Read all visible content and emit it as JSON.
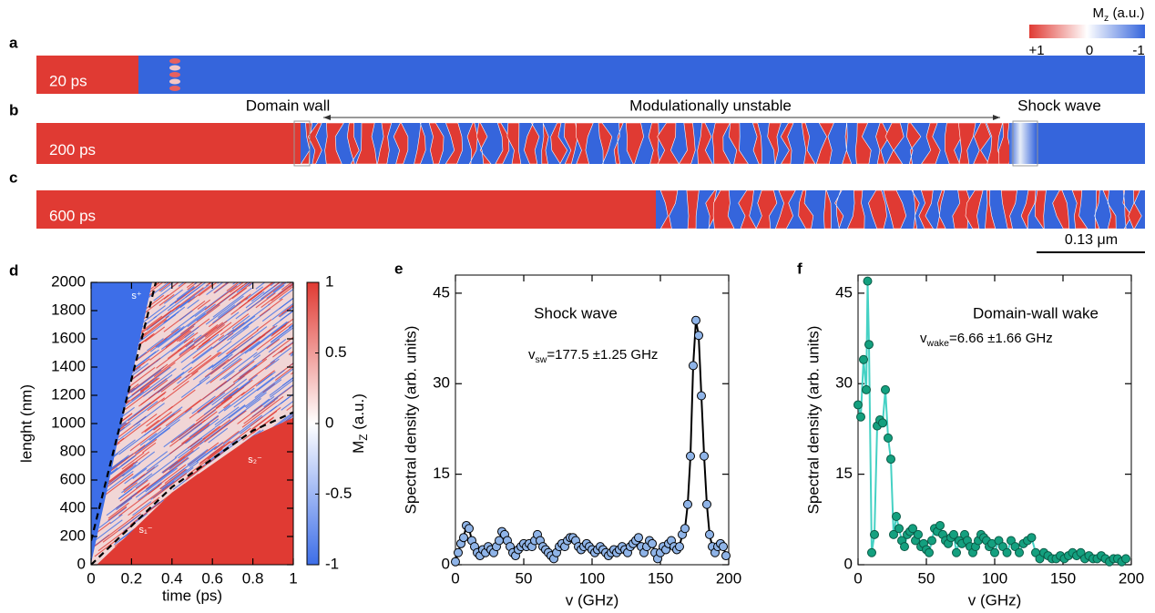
{
  "snapshots": {
    "colorbar_label": {
      "main": "M",
      "sub": "z",
      "rest": " (a.u.)"
    },
    "colorbar_ticks": [
      "+1",
      "0",
      "-1"
    ],
    "panels": [
      {
        "letter": "a",
        "time": "20 ps"
      },
      {
        "letter": "b",
        "time": "200 ps"
      },
      {
        "letter": "c",
        "time": "600 ps"
      }
    ],
    "annotations": [
      "Domain wall",
      "Modulationally unstable",
      "Shock wave"
    ],
    "scale_bar": "0.13 μm"
  },
  "chart_data": [
    {
      "type": "heatmap",
      "letter": "d",
      "x_label": "time (ps)",
      "y_label": "lenght (nm)",
      "colorbar_label": {
        "main": "M",
        "sub": "Z",
        "rest": " (a.u.)"
      },
      "xlim": [
        0,
        1
      ],
      "ylim": [
        0,
        2000
      ],
      "xticks": [
        0,
        0.2,
        0.4,
        0.6,
        0.8,
        1
      ],
      "yticks": [
        0,
        200,
        400,
        600,
        800,
        1000,
        1200,
        1400,
        1600,
        1800,
        2000
      ],
      "zlim": [
        -1,
        1
      ],
      "zticks": [
        1,
        0.5,
        0,
        -0.5,
        -1
      ],
      "lines": [
        {
          "x": [
            0,
            0.32
          ],
          "values": [
            170,
            2000
          ]
        },
        {
          "x": [
            0,
            0.4,
            0.8,
            1
          ],
          "values": [
            0,
            550,
            950,
            1080
          ]
        }
      ],
      "annotations": [
        "s⁺",
        "s₁⁻",
        "s₂⁻"
      ]
    },
    {
      "type": "line",
      "letter": "e",
      "x_label": "v (GHz)",
      "y_label": "Spectral density (arb. units)",
      "annotation": "Shock wave",
      "fit": {
        "main": "v",
        "sub": "sw",
        "rest": "=177.5 ±1.25 GHz"
      },
      "xlim": [
        0,
        200
      ],
      "ylim": [
        0,
        48
      ],
      "xticks": [
        0,
        50,
        100,
        150,
        200
      ],
      "yticks": [
        0,
        15,
        30,
        45
      ],
      "color": "#8fb4e8",
      "line_color": "#000000",
      "x": [
        0,
        2,
        4,
        6,
        8,
        10,
        12,
        14,
        16,
        18,
        20,
        22,
        24,
        26,
        28,
        30,
        32,
        34,
        36,
        38,
        40,
        42,
        44,
        46,
        48,
        50,
        52,
        54,
        56,
        58,
        60,
        62,
        64,
        66,
        68,
        70,
        72,
        74,
        76,
        78,
        80,
        82,
        84,
        86,
        88,
        90,
        92,
        94,
        96,
        98,
        100,
        102,
        104,
        106,
        108,
        110,
        112,
        114,
        116,
        118,
        120,
        122,
        124,
        126,
        128,
        130,
        132,
        134,
        136,
        138,
        140,
        142,
        144,
        146,
        148,
        150,
        152,
        154,
        156,
        158,
        160,
        162,
        164,
        166,
        168,
        170,
        172,
        174,
        176,
        178,
        180,
        182,
        184,
        186,
        188,
        190,
        192,
        194,
        196,
        198
      ],
      "values": [
        0.5,
        2,
        3.5,
        4.5,
        6.5,
        6,
        4,
        3,
        2,
        1.5,
        2.5,
        2,
        3,
        2.5,
        2,
        3,
        4,
        5.5,
        5,
        4,
        3,
        2,
        1.5,
        2.5,
        3,
        3.5,
        3,
        3.5,
        3,
        4,
        5,
        4,
        3,
        2.5,
        2,
        1.5,
        1,
        2,
        3,
        3.5,
        3,
        4,
        4.5,
        4.5,
        4,
        3,
        2.5,
        3,
        3.5,
        3,
        2.5,
        2,
        2.5,
        3,
        2.5,
        2,
        1.5,
        2,
        2.5,
        2,
        2.5,
        3,
        2.5,
        2,
        3,
        3.5,
        4,
        4.5,
        3,
        2,
        3,
        4,
        3.5,
        2,
        1,
        2,
        3,
        2.5,
        3.5,
        4,
        3,
        2.5,
        3,
        5,
        6,
        10,
        18,
        33,
        40.5,
        38,
        28,
        18,
        10,
        5,
        3,
        2,
        3,
        3.5,
        3,
        1.5
      ]
    },
    {
      "type": "line",
      "letter": "f",
      "x_label": "v (GHz)",
      "y_label": "Spectral density (arb. units)",
      "annotation": "Domain-wall wake",
      "fit": {
        "main": "v",
        "sub": "wake",
        "rest": "=6.66 ±1.66 GHz"
      },
      "xlim": [
        0,
        200
      ],
      "ylim": [
        0,
        48
      ],
      "xticks": [
        0,
        50,
        100,
        150,
        200
      ],
      "yticks": [
        0,
        15,
        30,
        45
      ],
      "color": "#14a07f",
      "line_color": "#45d1c4",
      "x": [
        0,
        2,
        4,
        6,
        7,
        8,
        10,
        12,
        14,
        16,
        18,
        20,
        22,
        24,
        26,
        28,
        30,
        32,
        34,
        36,
        38,
        40,
        42,
        44,
        46,
        48,
        50,
        52,
        54,
        56,
        58,
        60,
        62,
        64,
        66,
        68,
        70,
        72,
        74,
        76,
        78,
        80,
        82,
        84,
        86,
        88,
        90,
        92,
        94,
        96,
        98,
        100,
        103,
        106,
        109,
        112,
        115,
        118,
        121,
        124,
        127,
        130,
        133,
        136,
        139,
        142,
        145,
        148,
        151,
        154,
        157,
        160,
        163,
        166,
        169,
        172,
        175,
        178,
        181,
        184,
        187,
        190,
        193,
        196
      ],
      "values": [
        26.5,
        24.5,
        34,
        29,
        47,
        36.5,
        2,
        5,
        23,
        24,
        23.5,
        29,
        21,
        17.5,
        5,
        8,
        6,
        4,
        3,
        5,
        5.5,
        6,
        4,
        5,
        3,
        3.5,
        2.5,
        2,
        4,
        6,
        5.5,
        6.5,
        5,
        4,
        3.5,
        4.5,
        5,
        2,
        4,
        3.5,
        5,
        4,
        3,
        2,
        3,
        4,
        5,
        4.5,
        4,
        3,
        3.5,
        2,
        4,
        3,
        2,
        4,
        3,
        2,
        3.5,
        4,
        4.5,
        2,
        1,
        2,
        1.5,
        1,
        1,
        1.5,
        1,
        1.5,
        2,
        1.5,
        2,
        1,
        1.5,
        1,
        1,
        1.5,
        1,
        0.5,
        1,
        1,
        0.5,
        1
      ]
    }
  ]
}
